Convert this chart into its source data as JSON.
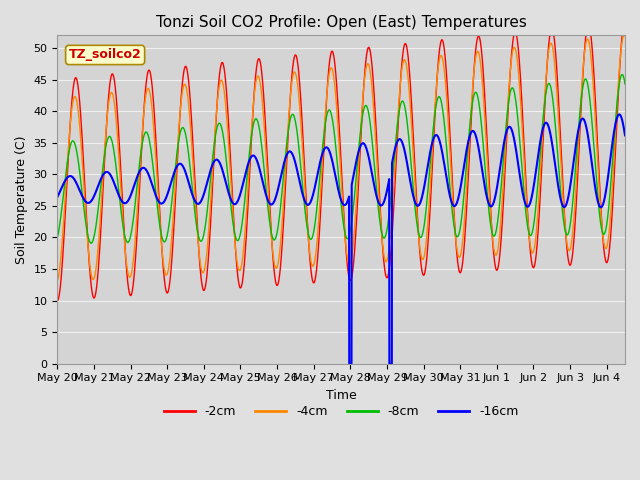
{
  "title": "Tonzi Soil CO2 Profile: Open (East) Temperatures",
  "ylabel": "Soil Temperature (C)",
  "xlabel": "Time",
  "legend_label": "TZ_soilco2",
  "ylim": [
    0,
    52
  ],
  "xlim": [
    0,
    15.5
  ],
  "series": [
    {
      "label": "-2cm",
      "color": "#ff0000"
    },
    {
      "label": "-4cm",
      "color": "#ff8800"
    },
    {
      "label": "-8cm",
      "color": "#00bb00"
    },
    {
      "label": "-16cm",
      "color": "#0000ff"
    }
  ],
  "x_tick_labels": [
    "May 20",
    "May 21",
    "May 22",
    "May 23",
    "May 24",
    "May 25",
    "May 26",
    "May 27",
    "May 28",
    "May 29",
    "May 30",
    "May 31",
    "Jun 1",
    "Jun 2",
    "Jun 3",
    "Jun 4"
  ],
  "background_color": "#e0e0e0",
  "plot_bg_color": "#d4d4d4",
  "grid_color": "#f0f0f0",
  "title_fontsize": 11,
  "axis_fontsize": 9,
  "tick_fontsize": 8,
  "legend_fontsize": 9,
  "n_points": 3000,
  "t_start": 0,
  "t_end": 15.5,
  "spike1": 8.0,
  "spike2": 9.1
}
